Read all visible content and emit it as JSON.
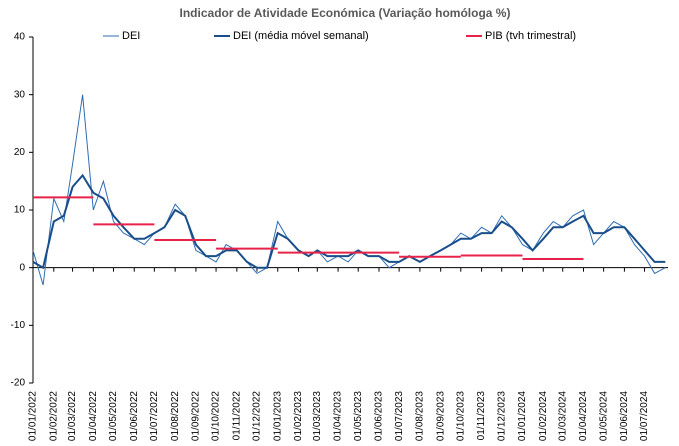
{
  "chart_data": {
    "type": "line",
    "title": "Indicador de Atividade Económica (Variação homóloga %)",
    "x": [
      "2022-01-01",
      "2022-01-16",
      "2022-02-01",
      "2022-02-16",
      "2022-03-01",
      "2022-03-16",
      "2022-04-01",
      "2022-04-16",
      "2022-05-01",
      "2022-05-16",
      "2022-06-01",
      "2022-06-16",
      "2022-07-01",
      "2022-07-16",
      "2022-08-01",
      "2022-08-16",
      "2022-09-01",
      "2022-09-16",
      "2022-10-01",
      "2022-10-16",
      "2022-11-01",
      "2022-11-16",
      "2022-12-01",
      "2022-12-16",
      "2023-01-01",
      "2023-01-16",
      "2023-02-01",
      "2023-02-16",
      "2023-03-01",
      "2023-03-16",
      "2023-04-01",
      "2023-04-16",
      "2023-05-01",
      "2023-05-16",
      "2023-06-01",
      "2023-06-16",
      "2023-07-01",
      "2023-07-16",
      "2023-08-01",
      "2023-08-16",
      "2023-09-01",
      "2023-09-16",
      "2023-10-01",
      "2023-10-16",
      "2023-11-01",
      "2023-11-16",
      "2023-12-01",
      "2023-12-16",
      "2024-01-01",
      "2024-01-16",
      "2024-02-01",
      "2024-02-16",
      "2024-03-01",
      "2024-03-16",
      "2024-04-01",
      "2024-04-16",
      "2024-05-01",
      "2024-05-16",
      "2024-06-01",
      "2024-06-16",
      "2024-07-01",
      "2024-07-16",
      "2024-08-01"
    ],
    "series": [
      {
        "name": "DEI",
        "color": "#2e6db4",
        "width": 1,
        "values": [
          3,
          -3,
          12,
          8,
          18,
          30,
          10,
          15,
          8,
          6,
          5,
          4,
          6,
          7,
          11,
          9,
          3,
          2,
          1,
          4,
          3,
          1,
          -1,
          0,
          8,
          5,
          3,
          2,
          3,
          1,
          2,
          1,
          3,
          2,
          2,
          0,
          1,
          2,
          1,
          2,
          3,
          4,
          6,
          5,
          7,
          6,
          9,
          7,
          4,
          3,
          6,
          8,
          7,
          9,
          10,
          4,
          6,
          8,
          7,
          4,
          2,
          -1,
          0
        ]
      },
      {
        "name": "DEI (média móvel semanal)",
        "color": "#1a4e8a",
        "width": 2,
        "values": [
          1,
          0,
          8,
          9,
          14,
          16,
          13,
          12,
          9,
          7,
          5,
          5,
          6,
          7,
          10,
          9,
          4,
          2,
          2,
          3,
          3,
          1,
          0,
          0,
          6,
          5,
          3,
          2,
          3,
          2,
          2,
          2,
          3,
          2,
          2,
          1,
          1,
          2,
          1,
          2,
          3,
          4,
          5,
          5,
          6,
          6,
          8,
          7,
          5,
          3,
          5,
          7,
          7,
          8,
          9,
          6,
          6,
          7,
          7,
          5,
          3,
          1,
          1
        ]
      }
    ],
    "pib": {
      "name": "PIB (tvh trimestral)",
      "color": "#e8234a",
      "x_start": [
        "2022-01-01",
        "2022-04-01",
        "2022-07-01",
        "2022-10-01",
        "2023-01-01",
        "2023-04-01",
        "2023-07-01",
        "2023-10-01",
        "2024-01-01"
      ],
      "x_end": [
        "2022-04-01",
        "2022-07-01",
        "2022-10-01",
        "2023-01-01",
        "2023-04-01",
        "2023-07-01",
        "2023-10-01",
        "2024-01-01",
        "2024-04-01"
      ],
      "values": [
        12.2,
        7.5,
        4.8,
        3.3,
        2.6,
        2.6,
        1.9,
        2.1,
        1.5
      ]
    },
    "xlim": [
      "2022-01-01",
      "2024-08-05"
    ],
    "xticks": [
      {
        "value": "2022-01-01",
        "label": "01/01/2022"
      },
      {
        "value": "2022-02-01",
        "label": "01/02/2022"
      },
      {
        "value": "2022-03-01",
        "label": "01/03/2022"
      },
      {
        "value": "2022-04-01",
        "label": "01/04/2022"
      },
      {
        "value": "2022-05-01",
        "label": "01/05/2022"
      },
      {
        "value": "2022-06-01",
        "label": "01/06/2022"
      },
      {
        "value": "2022-07-01",
        "label": "01/07/2022"
      },
      {
        "value": "2022-08-01",
        "label": "01/08/2022"
      },
      {
        "value": "2022-09-01",
        "label": "01/09/2022"
      },
      {
        "value": "2022-10-01",
        "label": "01/10/2022"
      },
      {
        "value": "2022-11-01",
        "label": "01/11/2022"
      },
      {
        "value": "2022-12-01",
        "label": "01/12/2022"
      },
      {
        "value": "2023-01-01",
        "label": "01/01/2023"
      },
      {
        "value": "2023-02-01",
        "label": "01/02/2023"
      },
      {
        "value": "2023-03-01",
        "label": "01/03/2023"
      },
      {
        "value": "2023-04-01",
        "label": "01/04/2023"
      },
      {
        "value": "2023-05-01",
        "label": "01/05/2023"
      },
      {
        "value": "2023-06-01",
        "label": "01/06/2023"
      },
      {
        "value": "2023-07-01",
        "label": "01/07/2023"
      },
      {
        "value": "2023-08-01",
        "label": "01/08/2023"
      },
      {
        "value": "2023-09-01",
        "label": "01/09/2023"
      },
      {
        "value": "2023-10-01",
        "label": "01/10/2023"
      },
      {
        "value": "2023-11-01",
        "label": "01/11/2023"
      },
      {
        "value": "2023-12-01",
        "label": "01/12/2023"
      },
      {
        "value": "2024-01-01",
        "label": "01/01/2024"
      },
      {
        "value": "2024-02-01",
        "label": "01/02/2024"
      },
      {
        "value": "2024-03-01",
        "label": "01/03/2024"
      },
      {
        "value": "2024-04-01",
        "label": "01/04/2024"
      },
      {
        "value": "2024-05-01",
        "label": "01/05/2024"
      },
      {
        "value": "2024-06-01",
        "label": "01/06/2024"
      },
      {
        "value": "2024-07-01",
        "label": "01/07/2024"
      }
    ],
    "ylim": [
      -20,
      40
    ],
    "yticks": [
      -20,
      -10,
      0,
      10,
      20,
      30,
      40
    ]
  }
}
